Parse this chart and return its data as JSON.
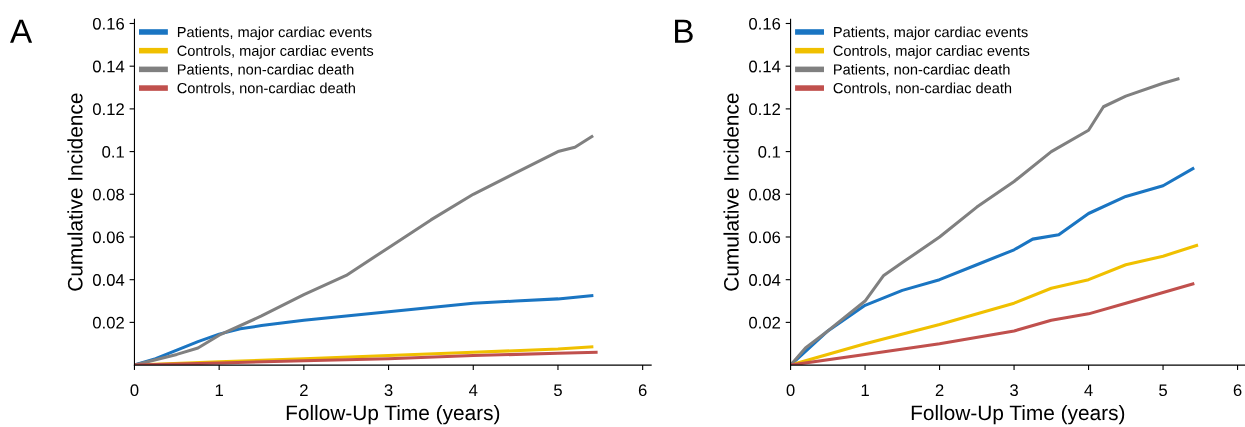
{
  "chart_data": [
    {
      "type": "line",
      "title": "A",
      "xlabel": "Follow-Up Time (years)",
      "ylabel": "Cumulative Incidence",
      "xlim": [
        0,
        6.1
      ],
      "ylim": [
        0,
        0.162
      ],
      "xticks": [
        0,
        1,
        2,
        3,
        4,
        5,
        6
      ],
      "yticks": [
        0.02,
        0.04,
        0.06,
        0.08,
        0.1,
        0.12,
        0.14,
        0.16
      ],
      "grid": false,
      "legend": "top left",
      "marker": "none",
      "line_style": "solid",
      "series": [
        {
          "name": "Patients, major cardiac events",
          "color": "#1a75c2",
          "x": [
            0,
            0.25,
            0.5,
            0.75,
            1,
            1.25,
            1.5,
            2,
            2.5,
            3,
            3.5,
            4,
            4.5,
            5,
            5.4
          ],
          "values": [
            0,
            0.003,
            0.007,
            0.011,
            0.0145,
            0.017,
            0.0185,
            0.021,
            0.023,
            0.025,
            0.027,
            0.029,
            0.03,
            0.031,
            0.0325
          ]
        },
        {
          "name": "Controls, major cardiac events",
          "color": "#f0c000",
          "x": [
            0,
            1,
            2,
            3,
            4,
            5,
            5.4
          ],
          "values": [
            0,
            0.0015,
            0.003,
            0.0045,
            0.006,
            0.0075,
            0.0085
          ]
        },
        {
          "name": "Patients, non-cardiac death",
          "color": "#808080",
          "x": [
            0,
            0.5,
            0.75,
            1,
            1.5,
            2,
            2.5,
            3,
            3.5,
            4,
            4.5,
            5,
            5.2,
            5.4
          ],
          "values": [
            0,
            0.005,
            0.008,
            0.014,
            0.023,
            0.033,
            0.042,
            0.055,
            0.068,
            0.08,
            0.09,
            0.1,
            0.102,
            0.107
          ]
        },
        {
          "name": "Controls, non-cardiac death",
          "color": "#c0504d",
          "x": [
            0,
            1,
            2,
            3,
            4,
            5,
            5.45
          ],
          "values": [
            0,
            0.001,
            0.002,
            0.003,
            0.0045,
            0.0055,
            0.006
          ]
        }
      ]
    },
    {
      "type": "line",
      "title": "B",
      "xlabel": "Follow-Up Time (years)",
      "ylabel": "Cumulative Incidence",
      "xlim": [
        0,
        6.1
      ],
      "ylim": [
        0,
        0.162
      ],
      "xticks": [
        0,
        1,
        2,
        3,
        4,
        5,
        6
      ],
      "yticks": [
        0.02,
        0.04,
        0.06,
        0.08,
        0.1,
        0.12,
        0.14,
        0.16
      ],
      "grid": false,
      "legend": "top left",
      "marker": "none",
      "line_style": "solid",
      "series": [
        {
          "name": "Patients, major cardiac events",
          "color": "#1a75c2",
          "x": [
            0,
            0.5,
            1,
            1.5,
            2,
            2.5,
            3,
            3.25,
            3.6,
            4,
            4.5,
            5,
            5.4
          ],
          "values": [
            0,
            0.016,
            0.028,
            0.035,
            0.04,
            0.047,
            0.054,
            0.059,
            0.061,
            0.071,
            0.079,
            0.084,
            0.092
          ]
        },
        {
          "name": "Controls, major cardiac events",
          "color": "#f0c000",
          "x": [
            0,
            1,
            2,
            3,
            3.5,
            4,
            4.5,
            5,
            5.45
          ],
          "values": [
            0,
            0.01,
            0.019,
            0.029,
            0.036,
            0.04,
            0.047,
            0.051,
            0.056
          ]
        },
        {
          "name": "Patients, non-cardiac death",
          "color": "#808080",
          "x": [
            0,
            0.2,
            0.5,
            1,
            1.25,
            1.5,
            2,
            2.5,
            3,
            3.5,
            4,
            4.2,
            4.5,
            5,
            5.2
          ],
          "values": [
            0,
            0.008,
            0.016,
            0.03,
            0.042,
            0.048,
            0.06,
            0.074,
            0.086,
            0.1,
            0.11,
            0.121,
            0.126,
            0.132,
            0.134
          ]
        },
        {
          "name": "Controls, non-cardiac death",
          "color": "#c0504d",
          "x": [
            0,
            1,
            2,
            3,
            3.5,
            4,
            4.5,
            5,
            5.4
          ],
          "values": [
            0,
            0.005,
            0.01,
            0.016,
            0.021,
            0.024,
            0.029,
            0.034,
            0.038
          ]
        }
      ]
    }
  ]
}
